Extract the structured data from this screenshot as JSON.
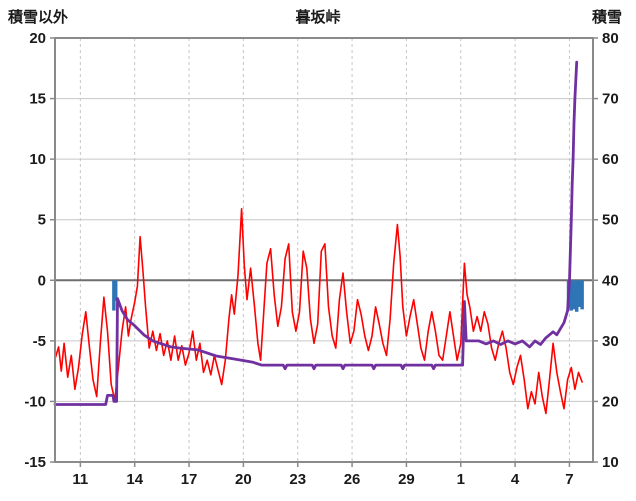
{
  "chart_data": {
    "type": "line",
    "title": "暮坂峠",
    "left_axis": {
      "label": "積雪以外",
      "min": -15,
      "max": 20,
      "ticks": [
        20,
        15,
        10,
        5,
        0,
        -5,
        -10,
        -15
      ]
    },
    "right_axis": {
      "label": "積雪",
      "min": 10,
      "max": 80,
      "ticks": [
        80,
        70,
        60,
        50,
        40,
        30,
        20,
        10
      ]
    },
    "x_axis": {
      "tick_labels": [
        "11",
        "14",
        "17",
        "20",
        "23",
        "26",
        "29",
        "1",
        "4",
        "7"
      ],
      "tick_days": [
        11,
        14,
        17,
        20,
        23,
        26,
        29,
        32,
        35,
        38
      ],
      "day_min": 9.6,
      "day_max": 39.3
    },
    "grid": {
      "horizontal": "solid",
      "vertical": "dashed",
      "zero_line": true
    },
    "colors": {
      "red_line": "#ff0000",
      "purple_line": "#7030a0",
      "blue_bars": "#2e75b6",
      "grid": "#c6c6c6",
      "zero": "#6e6e6e",
      "border": "#8a8a8a",
      "text": "#1a1a1a"
    },
    "series": {
      "red_line": {
        "axis": "left",
        "points": [
          [
            9.6,
            -6.5
          ],
          [
            9.8,
            -5.5
          ],
          [
            9.95,
            -7.5
          ],
          [
            10.1,
            -5.2
          ],
          [
            10.3,
            -8.0
          ],
          [
            10.5,
            -6.2
          ],
          [
            10.7,
            -9.0
          ],
          [
            10.9,
            -7.2
          ],
          [
            11.1,
            -4.5
          ],
          [
            11.3,
            -2.6
          ],
          [
            11.5,
            -5.5
          ],
          [
            11.7,
            -8.2
          ],
          [
            11.9,
            -9.6
          ],
          [
            12.1,
            -5.2
          ],
          [
            12.3,
            -1.4
          ],
          [
            12.5,
            -4.2
          ],
          [
            12.7,
            -8.6
          ],
          [
            12.9,
            -9.9
          ],
          [
            13.1,
            -7.2
          ],
          [
            13.3,
            -4.2
          ],
          [
            13.5,
            -2.2
          ],
          [
            13.65,
            -4.6
          ],
          [
            13.8,
            -3.2
          ],
          [
            14.0,
            -1.8
          ],
          [
            14.15,
            -0.5
          ],
          [
            14.3,
            3.6
          ],
          [
            14.45,
            0.8
          ],
          [
            14.6,
            -2.2
          ],
          [
            14.8,
            -5.6
          ],
          [
            15.0,
            -4.2
          ],
          [
            15.2,
            -5.8
          ],
          [
            15.4,
            -4.4
          ],
          [
            15.6,
            -6.2
          ],
          [
            15.8,
            -5.0
          ],
          [
            16.0,
            -6.6
          ],
          [
            16.2,
            -4.6
          ],
          [
            16.4,
            -6.6
          ],
          [
            16.6,
            -5.4
          ],
          [
            16.8,
            -7.0
          ],
          [
            17.0,
            -6.0
          ],
          [
            17.2,
            -4.2
          ],
          [
            17.4,
            -6.6
          ],
          [
            17.6,
            -5.2
          ],
          [
            17.8,
            -7.6
          ],
          [
            18.0,
            -6.6
          ],
          [
            18.2,
            -7.8
          ],
          [
            18.4,
            -6.2
          ],
          [
            18.6,
            -7.4
          ],
          [
            18.8,
            -8.6
          ],
          [
            19.0,
            -6.6
          ],
          [
            19.2,
            -3.2
          ],
          [
            19.35,
            -1.2
          ],
          [
            19.5,
            -2.8
          ],
          [
            19.7,
            0.4
          ],
          [
            19.9,
            5.9
          ],
          [
            20.05,
            1.2
          ],
          [
            20.2,
            -1.6
          ],
          [
            20.4,
            1.0
          ],
          [
            20.6,
            -2.0
          ],
          [
            20.8,
            -5.2
          ],
          [
            20.95,
            -6.6
          ],
          [
            21.1,
            -3.2
          ],
          [
            21.3,
            1.4
          ],
          [
            21.5,
            2.6
          ],
          [
            21.7,
            -1.2
          ],
          [
            21.9,
            -3.8
          ],
          [
            22.1,
            -2.2
          ],
          [
            22.3,
            1.8
          ],
          [
            22.5,
            3.0
          ],
          [
            22.7,
            -2.6
          ],
          [
            22.9,
            -4.2
          ],
          [
            23.1,
            -2.6
          ],
          [
            23.3,
            2.4
          ],
          [
            23.5,
            1.0
          ],
          [
            23.7,
            -3.2
          ],
          [
            23.9,
            -5.2
          ],
          [
            24.1,
            -3.6
          ],
          [
            24.3,
            2.4
          ],
          [
            24.5,
            3.0
          ],
          [
            24.7,
            -2.2
          ],
          [
            24.9,
            -4.6
          ],
          [
            25.1,
            -5.6
          ],
          [
            25.3,
            -1.6
          ],
          [
            25.5,
            0.6
          ],
          [
            25.7,
            -2.6
          ],
          [
            25.9,
            -5.2
          ],
          [
            26.1,
            -4.2
          ],
          [
            26.3,
            -1.6
          ],
          [
            26.5,
            -2.8
          ],
          [
            26.7,
            -4.6
          ],
          [
            26.9,
            -5.8
          ],
          [
            27.1,
            -4.6
          ],
          [
            27.3,
            -2.2
          ],
          [
            27.5,
            -3.6
          ],
          [
            27.7,
            -5.2
          ],
          [
            27.9,
            -6.2
          ],
          [
            28.1,
            -3.2
          ],
          [
            28.3,
            1.4
          ],
          [
            28.5,
            4.6
          ],
          [
            28.65,
            2.0
          ],
          [
            28.8,
            -2.2
          ],
          [
            29.0,
            -4.6
          ],
          [
            29.2,
            -3.0
          ],
          [
            29.4,
            -1.6
          ],
          [
            29.6,
            -3.6
          ],
          [
            29.8,
            -5.6
          ],
          [
            30.0,
            -6.6
          ],
          [
            30.2,
            -4.2
          ],
          [
            30.4,
            -2.6
          ],
          [
            30.6,
            -4.2
          ],
          [
            30.8,
            -6.2
          ],
          [
            31.0,
            -6.6
          ],
          [
            31.2,
            -4.6
          ],
          [
            31.4,
            -2.6
          ],
          [
            31.6,
            -4.6
          ],
          [
            31.8,
            -6.6
          ],
          [
            32.0,
            -5.2
          ],
          [
            32.2,
            1.4
          ],
          [
            32.35,
            -1.2
          ],
          [
            32.5,
            -2.2
          ],
          [
            32.7,
            -4.2
          ],
          [
            32.9,
            -3.0
          ],
          [
            33.1,
            -4.2
          ],
          [
            33.3,
            -2.6
          ],
          [
            33.5,
            -3.6
          ],
          [
            33.7,
            -5.6
          ],
          [
            33.9,
            -6.6
          ],
          [
            34.1,
            -5.2
          ],
          [
            34.3,
            -4.2
          ],
          [
            34.5,
            -5.6
          ],
          [
            34.7,
            -7.6
          ],
          [
            34.9,
            -8.6
          ],
          [
            35.1,
            -7.2
          ],
          [
            35.3,
            -6.2
          ],
          [
            35.5,
            -8.2
          ],
          [
            35.7,
            -10.6
          ],
          [
            35.9,
            -9.2
          ],
          [
            36.1,
            -10.2
          ],
          [
            36.3,
            -7.6
          ],
          [
            36.5,
            -9.6
          ],
          [
            36.7,
            -11.0
          ],
          [
            36.9,
            -8.2
          ],
          [
            37.1,
            -5.2
          ],
          [
            37.3,
            -7.6
          ],
          [
            37.5,
            -9.2
          ],
          [
            37.7,
            -10.6
          ],
          [
            37.9,
            -8.2
          ],
          [
            38.1,
            -7.2
          ],
          [
            38.3,
            -9.0
          ],
          [
            38.5,
            -7.6
          ],
          [
            38.7,
            -8.4
          ]
        ]
      },
      "purple_line": {
        "axis": "right",
        "points": [
          [
            9.6,
            19.5
          ],
          [
            12.4,
            19.5
          ],
          [
            12.5,
            21
          ],
          [
            12.8,
            21
          ],
          [
            12.85,
            20
          ],
          [
            13.0,
            20
          ],
          [
            13.05,
            37
          ],
          [
            13.3,
            35
          ],
          [
            13.6,
            33.5
          ],
          [
            14.0,
            32.5
          ],
          [
            14.5,
            31
          ],
          [
            15.0,
            30
          ],
          [
            15.5,
            29.5
          ],
          [
            16.0,
            29
          ],
          [
            16.5,
            28.8
          ],
          [
            17.5,
            28.5
          ],
          [
            18.5,
            27.5
          ],
          [
            19.5,
            27
          ],
          [
            20.5,
            26.5
          ],
          [
            21.0,
            26
          ],
          [
            22.2,
            26
          ],
          [
            22.3,
            25.4
          ],
          [
            22.4,
            26
          ],
          [
            23.8,
            26
          ],
          [
            23.9,
            25.4
          ],
          [
            24.0,
            26
          ],
          [
            25.4,
            26
          ],
          [
            25.5,
            25.4
          ],
          [
            25.6,
            26
          ],
          [
            27.1,
            26
          ],
          [
            27.2,
            25.4
          ],
          [
            27.3,
            26
          ],
          [
            28.7,
            26
          ],
          [
            28.8,
            25.4
          ],
          [
            28.9,
            26
          ],
          [
            30.4,
            26
          ],
          [
            30.5,
            25.4
          ],
          [
            30.6,
            26
          ],
          [
            32.1,
            26
          ],
          [
            32.2,
            36.5
          ],
          [
            32.3,
            30
          ],
          [
            33.0,
            30
          ],
          [
            33.4,
            29.5
          ],
          [
            33.8,
            30
          ],
          [
            34.2,
            29.4
          ],
          [
            34.6,
            30
          ],
          [
            35.0,
            29.5
          ],
          [
            35.4,
            30
          ],
          [
            35.8,
            29
          ],
          [
            36.1,
            30
          ],
          [
            36.4,
            29.4
          ],
          [
            36.7,
            30.5
          ],
          [
            36.9,
            31
          ],
          [
            37.1,
            31.5
          ],
          [
            37.3,
            31
          ],
          [
            37.5,
            32
          ],
          [
            37.7,
            33
          ],
          [
            37.9,
            35
          ],
          [
            38.0,
            40
          ],
          [
            38.05,
            45
          ],
          [
            38.1,
            50
          ],
          [
            38.15,
            56
          ],
          [
            38.2,
            60
          ],
          [
            38.25,
            66
          ],
          [
            38.3,
            70
          ],
          [
            38.4,
            76
          ]
        ]
      },
      "blue_bars": {
        "axis": "left",
        "bars": [
          [
            12.85,
            2.5
          ],
          [
            12.95,
            1.7
          ],
          [
            37.95,
            2.3
          ],
          [
            38.1,
            2.5
          ],
          [
            38.25,
            2.4
          ],
          [
            38.4,
            2.6
          ],
          [
            38.55,
            2.2
          ],
          [
            38.7,
            2.4
          ]
        ]
      }
    }
  }
}
